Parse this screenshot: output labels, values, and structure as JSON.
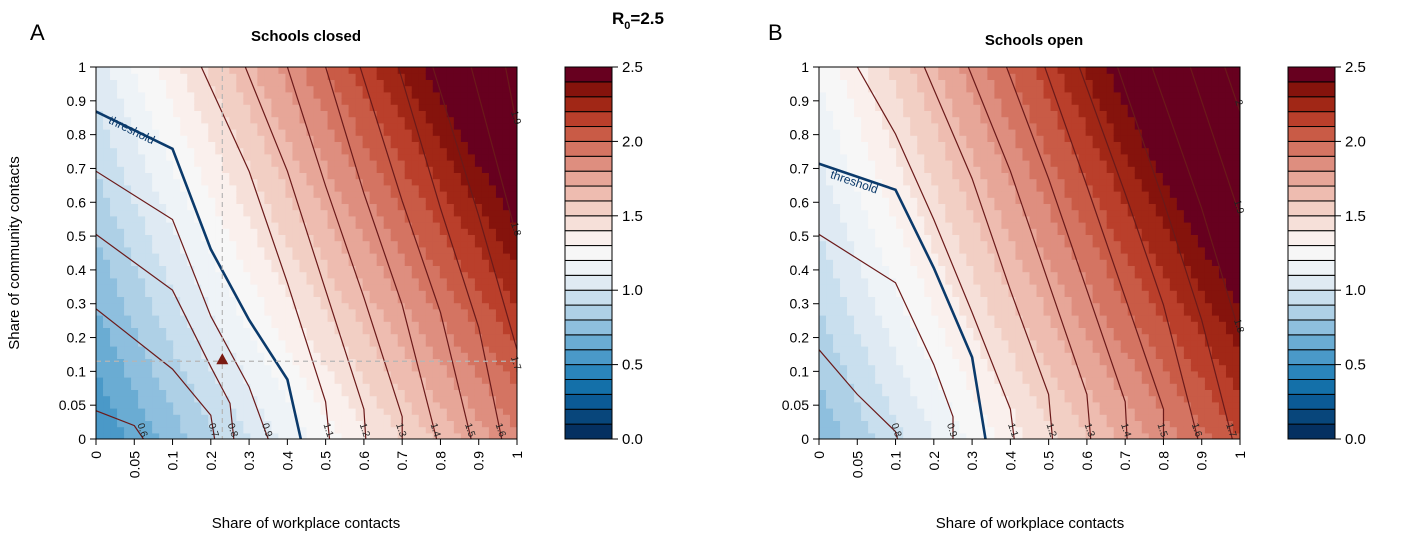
{
  "figure": {
    "headline_main": "R",
    "headline_sub": "0",
    "headline_rest": "=2.5"
  },
  "chart_data": [
    {
      "type": "contour",
      "panel_letter": "A",
      "title": "Schools closed",
      "xlabel": "Share of workplace contacts",
      "ylabel": "Share of community contacts",
      "x_ticks": [
        "0",
        "0.05",
        "0.1",
        "0.2",
        "0.3",
        "0.4",
        "0.5",
        "0.6",
        "0.7",
        "0.8",
        "0.9",
        "1"
      ],
      "y_ticks": [
        "0",
        "0.05",
        "0.1",
        "0.2",
        "0.3",
        "0.4",
        "0.5",
        "0.6",
        "0.7",
        "0.8",
        "0.9",
        "1"
      ],
      "contours": [
        {
          "level": 0.6,
          "label": "0.6",
          "points": [
            [
              0,
              0.38
            ],
            [
              0.05,
              0.18
            ],
            [
              0.062,
              0
            ]
          ]
        },
        {
          "level": 0.7,
          "label": "0.7",
          "points": [
            [
              0,
              1.75
            ],
            [
              0.1,
              0.94
            ],
            [
              0.2,
              0.32
            ],
            [
              0.21,
              0
            ]
          ]
        },
        {
          "level": 0.8,
          "label": "0.8",
          "points": [
            [
              0,
              2.75
            ],
            [
              0.1,
              2.0
            ],
            [
              0.2,
              0.97
            ],
            [
              0.25,
              0.48
            ],
            [
              0.26,
              0
            ]
          ]
        },
        {
          "level": 0.9,
          "label": "0.9",
          "points": [
            [
              0,
              3.6
            ],
            [
              0.1,
              2.95
            ],
            [
              0.2,
              1.65
            ],
            [
              0.3,
              0.7
            ],
            [
              0.35,
              0
            ]
          ]
        },
        {
          "level": 1.0,
          "label": "threshold",
          "threshold": true,
          "points": [
            [
              0,
              4.4
            ],
            [
              0.1,
              3.9
            ],
            [
              0.2,
              2.55
            ],
            [
              0.3,
              1.6
            ],
            [
              0.4,
              0.8
            ],
            [
              0.435,
              0
            ]
          ]
        },
        {
          "level": 1.1,
          "label": "1.1",
          "points": [
            [
              0.175,
              5
            ],
            [
              0.3,
              3.6
            ],
            [
              0.4,
              2.1
            ],
            [
              0.5,
              0.5
            ],
            [
              0.51,
              0
            ]
          ]
        },
        {
          "level": 1.2,
          "label": "1.2",
          "points": [
            [
              0.29,
              5
            ],
            [
              0.4,
              3.6
            ],
            [
              0.5,
              2.0
            ],
            [
              0.6,
              0.4
            ],
            [
              0.605,
              0
            ]
          ]
        },
        {
          "level": 1.3,
          "label": "1.3",
          "points": [
            [
              0.4,
              5
            ],
            [
              0.5,
              3.4
            ],
            [
              0.6,
              1.9
            ],
            [
              0.7,
              0.3
            ],
            [
              0.7,
              0
            ]
          ]
        },
        {
          "level": 1.4,
          "label": "1.4",
          "points": [
            [
              0.5,
              5
            ],
            [
              0.6,
              3.3
            ],
            [
              0.7,
              1.8
            ],
            [
              0.79,
              0
            ]
          ]
        },
        {
          "level": 1.5,
          "label": "1.5",
          "points": [
            [
              0.59,
              5
            ],
            [
              0.7,
              3.2
            ],
            [
              0.8,
              1.7
            ],
            [
              0.88,
              0
            ]
          ]
        },
        {
          "level": 1.6,
          "label": "1.6",
          "points": [
            [
              0.69,
              5
            ],
            [
              0.8,
              3.1
            ],
            [
              0.9,
              1.5
            ],
            [
              0.96,
              0
            ]
          ]
        },
        {
          "level": 1.7,
          "label": "1.7",
          "points": [
            [
              0.78,
              5
            ],
            [
              0.9,
              3.0
            ],
            [
              1.0,
              1.2
            ],
            [
              1.0,
              0.9
            ]
          ]
        },
        {
          "level": 1.8,
          "label": "1.8",
          "points": [
            [
              0.88,
              5
            ],
            [
              1.0,
              2.7
            ]
          ]
        },
        {
          "level": 1.9,
          "label": "1.9",
          "points": [
            [
              0.97,
              5
            ],
            [
              1.0,
              4.2
            ]
          ]
        },
        {
          "level": 2.0,
          "label": "2",
          "points": [
            [
              1.0,
              4.95
            ]
          ]
        }
      ],
      "marker": {
        "x": 0.23,
        "y": 0.13,
        "shape": "triangle"
      },
      "crosshair": {
        "x": 0.23,
        "y": 0.13
      }
    },
    {
      "type": "contour",
      "panel_letter": "B",
      "title": "Schools open",
      "xlabel": "Share of workplace contacts",
      "ylabel": "",
      "x_ticks": [
        "0",
        "0.05",
        "0.1",
        "0.2",
        "0.3",
        "0.4",
        "0.5",
        "0.6",
        "0.7",
        "0.8",
        "0.9",
        "1"
      ],
      "y_ticks": [
        "0",
        "0.05",
        "0.1",
        "0.2",
        "0.3",
        "0.4",
        "0.5",
        "0.6",
        "0.7",
        "0.8",
        "0.9",
        "1"
      ],
      "contours": [
        {
          "level": 0.8,
          "label": "0.8",
          "points": [
            [
              0,
              1.2
            ],
            [
              0.05,
              0.6
            ],
            [
              0.1,
              0.1
            ],
            [
              0.105,
              0
            ]
          ]
        },
        {
          "level": 0.9,
          "label": "0.9",
          "points": [
            [
              0,
              2.75
            ],
            [
              0.1,
              2.1
            ],
            [
              0.2,
              1.0
            ],
            [
              0.25,
              0.3
            ],
            [
              0.25,
              0
            ]
          ]
        },
        {
          "level": 1.0,
          "label": "threshold",
          "threshold": true,
          "points": [
            [
              0,
              3.7
            ],
            [
              0.1,
              3.35
            ],
            [
              0.2,
              2.3
            ],
            [
              0.3,
              1.1
            ],
            [
              0.335,
              0
            ]
          ]
        },
        {
          "level": 1.1,
          "label": "1.1",
          "points": [
            [
              0.05,
              5
            ],
            [
              0.1,
              4.1
            ],
            [
              0.2,
              2.95
            ],
            [
              0.3,
              1.7
            ],
            [
              0.4,
              0.4
            ],
            [
              0.41,
              0
            ]
          ]
        },
        {
          "level": 1.2,
          "label": "1.2",
          "points": [
            [
              0.175,
              5
            ],
            [
              0.3,
              3.5
            ],
            [
              0.4,
              2.0
            ],
            [
              0.5,
              0.6
            ],
            [
              0.51,
              0
            ]
          ]
        },
        {
          "level": 1.3,
          "label": "1.3",
          "points": [
            [
              0.29,
              5
            ],
            [
              0.4,
              3.6
            ],
            [
              0.5,
              2.1
            ],
            [
              0.6,
              0.6
            ],
            [
              0.61,
              0
            ]
          ]
        },
        {
          "level": 1.4,
          "label": "1.4",
          "points": [
            [
              0.39,
              5
            ],
            [
              0.5,
              3.5
            ],
            [
              0.6,
              2.0
            ],
            [
              0.7,
              0.5
            ],
            [
              0.705,
              0
            ]
          ]
        },
        {
          "level": 1.5,
          "label": "1.5",
          "points": [
            [
              0.49,
              5
            ],
            [
              0.6,
              3.4
            ],
            [
              0.7,
              1.9
            ],
            [
              0.8,
              0.4
            ],
            [
              0.8,
              0
            ]
          ]
        },
        {
          "level": 1.6,
          "label": "1.6",
          "points": [
            [
              0.58,
              5
            ],
            [
              0.7,
              3.3
            ],
            [
              0.8,
              1.8
            ],
            [
              0.89,
              0
            ]
          ]
        },
        {
          "level": 1.7,
          "label": "1.7",
          "points": [
            [
              0.68,
              5
            ],
            [
              0.8,
              3.2
            ],
            [
              0.9,
              1.6
            ],
            [
              0.98,
              0
            ]
          ]
        },
        {
          "level": 1.8,
          "label": "1.8",
          "points": [
            [
              0.77,
              5
            ],
            [
              0.9,
              3.1
            ],
            [
              1.0,
              1.4
            ]
          ]
        },
        {
          "level": 1.9,
          "label": "1.9",
          "points": [
            [
              0.87,
              5
            ],
            [
              1.0,
              3.0
            ]
          ]
        },
        {
          "level": 2.0,
          "label": "2",
          "points": [
            [
              0.96,
              5
            ],
            [
              1.0,
              4.4
            ]
          ]
        }
      ]
    }
  ],
  "colorbars": [
    {
      "ticks": [
        "0.0",
        "0.5",
        "1.0",
        "1.5",
        "2.0",
        "2.5"
      ]
    },
    {
      "ticks": [
        "0.0",
        "0.5",
        "1.0",
        "1.5",
        "2.0",
        "2.5"
      ]
    }
  ],
  "colorbar_scale": {
    "min": 0.0,
    "max": 2.5,
    "step": 0.1
  },
  "colors": {
    "low": "#053061",
    "mid": "#f7f7f7",
    "high": "#67001f",
    "contour": "#6b1a1a",
    "threshold": "#0b3a6b"
  }
}
